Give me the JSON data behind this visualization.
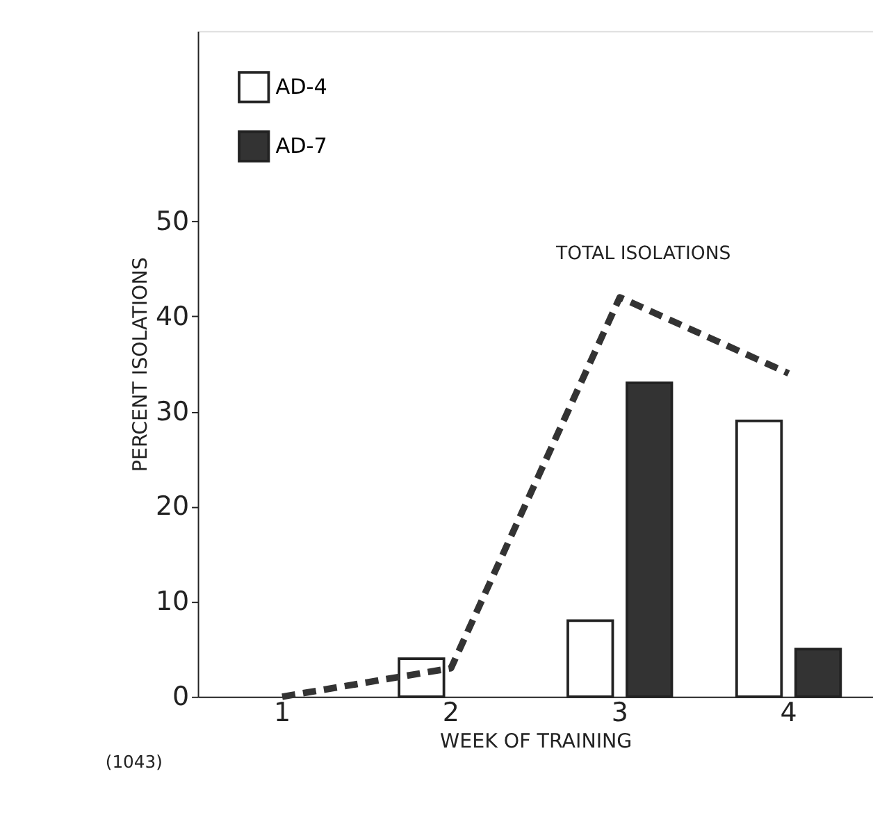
{
  "chart_data": {
    "type": "bar",
    "xlabel": "WEEK OF TRAINING",
    "ylabel": "PERCENT ISOLATIONS",
    "categories": [
      "1",
      "2",
      "3",
      "4"
    ],
    "series": [
      {
        "name": "AD-4",
        "color": "#ffffff",
        "values": [
          0,
          4,
          8,
          29
        ]
      },
      {
        "name": "AD-7",
        "color": "#333333",
        "values": [
          0,
          0,
          33,
          5
        ]
      },
      {
        "type": "line",
        "color": "#333333",
        "line_style": "dashed",
        "marker": "none",
        "values": [
          0,
          3,
          42,
          34
        ]
      }
    ],
    "ylim": [
      0,
      70
    ],
    "yticks": [
      0,
      10,
      20,
      30,
      40,
      50
    ],
    "grid": false,
    "legend": "top left",
    "annotations": [
      "TOTAL ISOLATIONS",
      "(1043)"
    ]
  }
}
